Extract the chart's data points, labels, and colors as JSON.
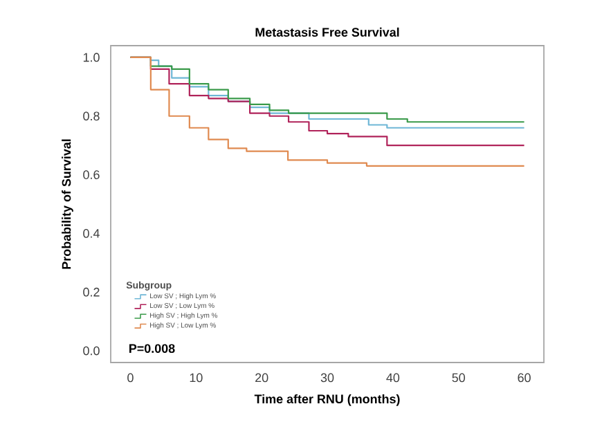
{
  "chart_data": {
    "type": "step",
    "title": "Metastasis Free Survival",
    "xlabel": "Time after RNU (months)",
    "ylabel": "Probability of Survival",
    "legend_title": "Subgroup",
    "xlim": [
      -3,
      63
    ],
    "ylim": [
      -0.04,
      1.04
    ],
    "xticks": [
      0,
      10,
      20,
      30,
      40,
      50,
      60
    ],
    "yticks": [
      {
        "value": 0,
        "label": "0.0"
      },
      {
        "value": 0.2,
        "label": "0.2"
      },
      {
        "value": 0.4,
        "label": "0.4"
      },
      {
        "value": 0.6,
        "label": "0.6"
      },
      {
        "value": 0.8,
        "label": "0.8"
      },
      {
        "value": 1,
        "label": "1.0"
      }
    ],
    "grid": false,
    "legend": "bottom left",
    "marker": "none",
    "line_style": "solid",
    "annotations": [
      "P=0.008"
    ],
    "series": [
      {
        "name": "Low SV ; High Lym %",
        "color": "#6fb7d6",
        "x": [
          0,
          3.1,
          4.3,
          6.3,
          9,
          11.9,
          14.9,
          18.2,
          21.2,
          27.2,
          36.3,
          39.1,
          60
        ],
        "values": [
          1.0,
          0.99,
          0.97,
          0.93,
          0.9,
          0.87,
          0.85,
          0.83,
          0.81,
          0.79,
          0.77,
          0.76,
          0.76
        ]
      },
      {
        "name": "Low SV ; Low Lym %",
        "color": "#b0235a",
        "x": [
          0,
          3.1,
          5.9,
          9,
          11.9,
          14.9,
          18.2,
          21.2,
          24.1,
          27.2,
          30,
          33.2,
          39.1,
          60
        ],
        "values": [
          1.0,
          0.96,
          0.91,
          0.87,
          0.86,
          0.85,
          0.81,
          0.8,
          0.78,
          0.75,
          0.74,
          0.73,
          0.7,
          0.7
        ]
      },
      {
        "name": "High SV ; High Lym %",
        "color": "#3a9a4a",
        "x": [
          0,
          3.1,
          6.3,
          9,
          11.9,
          14.9,
          18.2,
          21.2,
          24.1,
          39.1,
          42.2,
          60
        ],
        "values": [
          1.0,
          0.97,
          0.96,
          0.91,
          0.89,
          0.86,
          0.84,
          0.82,
          0.81,
          0.79,
          0.78,
          0.78
        ]
      },
      {
        "name": "High SV ; Low Lym %",
        "color": "#e08a50",
        "x": [
          0,
          3.1,
          5.9,
          9,
          11.9,
          14.9,
          17.7,
          24,
          30,
          36,
          60
        ],
        "values": [
          1.0,
          0.89,
          0.8,
          0.76,
          0.72,
          0.69,
          0.68,
          0.65,
          0.64,
          0.63,
          0.63
        ]
      }
    ]
  }
}
